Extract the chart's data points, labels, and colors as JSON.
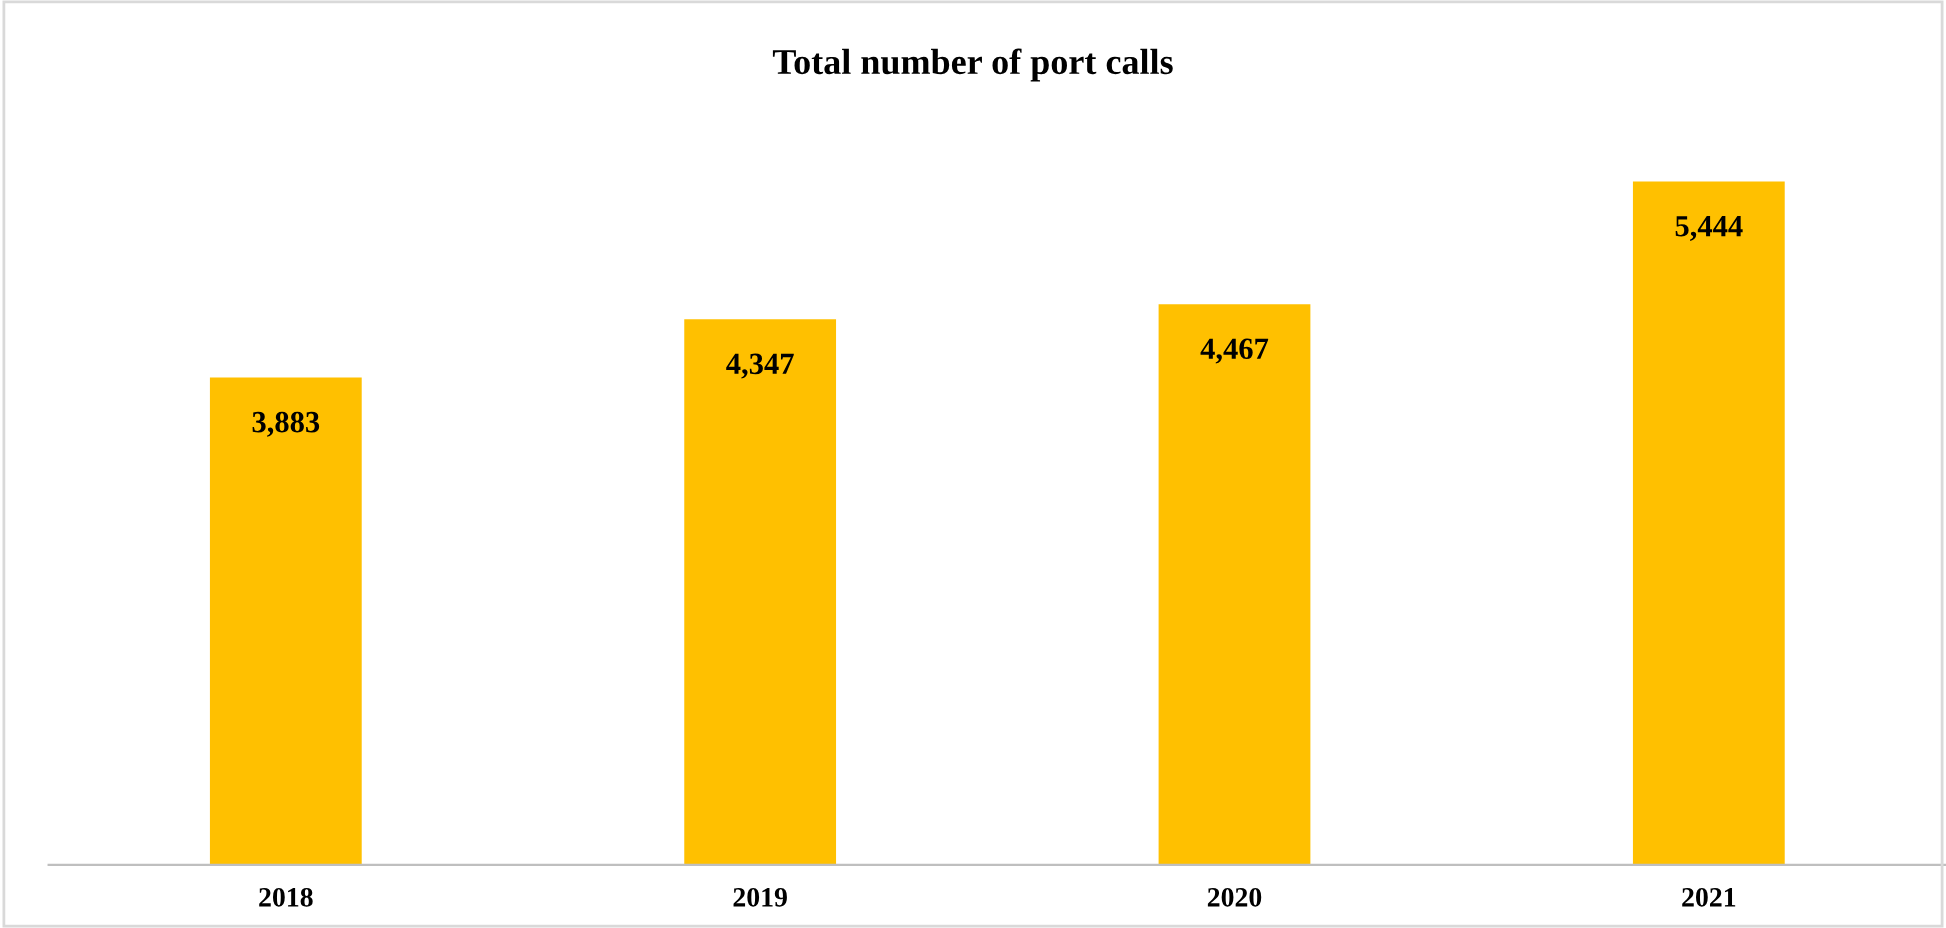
{
  "chart_data": {
    "type": "bar",
    "title": "Total number of port calls",
    "categories": [
      "2018",
      "2019",
      "2020",
      "2021"
    ],
    "values": [
      3883,
      4347,
      4467,
      5444
    ],
    "color": "#ffc000",
    "value_labels": [
      "3,883",
      "4,347",
      "4,467",
      "5,444"
    ],
    "grid": false,
    "legend": false,
    "tick_labels": "x"
  }
}
